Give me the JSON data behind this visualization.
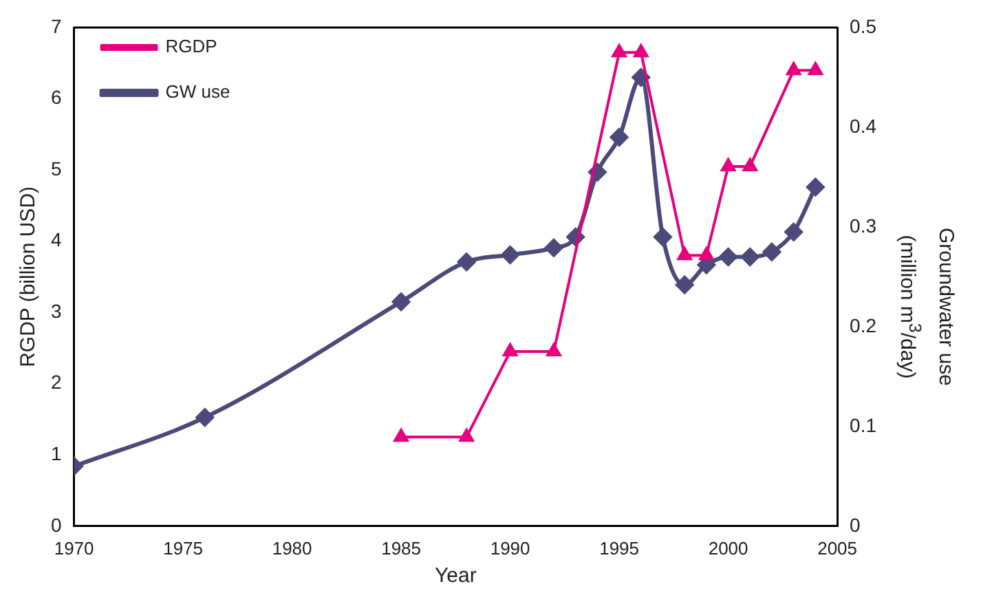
{
  "chart_data": {
    "type": "line",
    "xlabel": "Year",
    "ylabel": "RGDP (billion USD)",
    "y2label": "Groundwater use (million m$^{3}$/day)",
    "xlim": [
      1970,
      2005
    ],
    "xticks": [
      1970,
      1975,
      1980,
      1985,
      1990,
      1995,
      2000,
      2005
    ],
    "ylim": [
      0,
      7
    ],
    "yticks": [
      0,
      1,
      2,
      3,
      4,
      5,
      6,
      7
    ],
    "y2lim": [
      0,
      0.5
    ],
    "y2ticks": [
      0,
      0.1,
      0.2,
      0.3,
      0.4,
      0.5
    ],
    "grid": false,
    "legend": "top left",
    "series": [
      {
        "name": "RGDP",
        "color": "#e6007e",
        "marker": "triangle",
        "x": [
          1985,
          1988,
          1990,
          1992,
          1995,
          1996,
          1998,
          1999,
          2000,
          2001,
          2003,
          2004
        ],
        "values": [
          1.25,
          1.25,
          2.45,
          2.45,
          6.65,
          6.65,
          3.8,
          3.8,
          5.05,
          5.05,
          6.4,
          6.4
        ]
      },
      {
        "name": "GW use",
        "color": "#4b4a7a",
        "marker": "diamond",
        "axis": "y2",
        "x": [
          1970,
          1976,
          1985,
          1988,
          1990,
          1992,
          1993,
          1994,
          1995,
          1996,
          1997,
          1998,
          1999,
          2000,
          2001,
          2002,
          2003,
          2004
        ],
        "values": [
          0.06,
          0.109,
          0.225,
          0.265,
          0.272,
          0.279,
          0.29,
          0.355,
          0.39,
          0.45,
          0.29,
          0.242,
          0.262,
          0.27,
          0.27,
          0.275,
          0.295,
          0.34
        ]
      }
    ]
  }
}
